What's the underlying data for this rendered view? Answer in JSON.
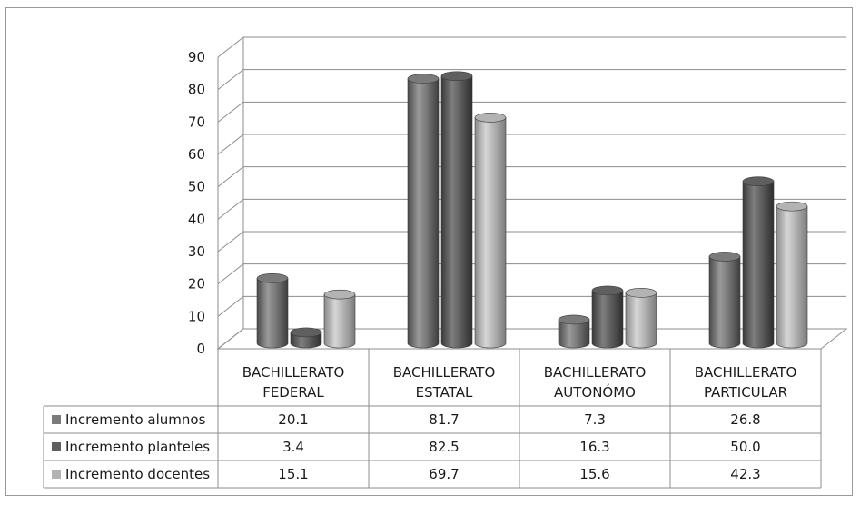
{
  "chart_data": {
    "type": "bar",
    "title": "",
    "xlabel": "",
    "ylabel": "",
    "ylim": [
      0,
      90
    ],
    "y_ticks": [
      0,
      10,
      20,
      30,
      40,
      50,
      60,
      70,
      80,
      90
    ],
    "grid": true,
    "legend": "data-table-left",
    "categories": [
      [
        "BACHILLERATO",
        "FEDERAL"
      ],
      [
        "BACHILLERATO",
        "ESTATAL"
      ],
      [
        "BACHILLERATO",
        "AUTONÓMO"
      ],
      [
        "BACHILLERATO",
        "PARTICULAR"
      ]
    ],
    "series": [
      {
        "name": "Incremento alumnos",
        "values": [
          20.1,
          81.7,
          7.3,
          26.8
        ],
        "labels": [
          "20.1",
          "81.7",
          "7.3",
          "26.8"
        ],
        "color": "#7a7a7a"
      },
      {
        "name": "Incremento planteles",
        "values": [
          3.4,
          82.5,
          16.3,
          50.0
        ],
        "labels": [
          "3.4",
          "82.5",
          "16.3",
          "50.0"
        ],
        "color": "#5f5f5f"
      },
      {
        "name": "Incremento docentes",
        "values": [
          15.1,
          69.7,
          15.6,
          42.3
        ],
        "labels": [
          "15.1",
          "69.7",
          "15.6",
          "42.3"
        ],
        "color": "#b3b3b3"
      }
    ]
  }
}
